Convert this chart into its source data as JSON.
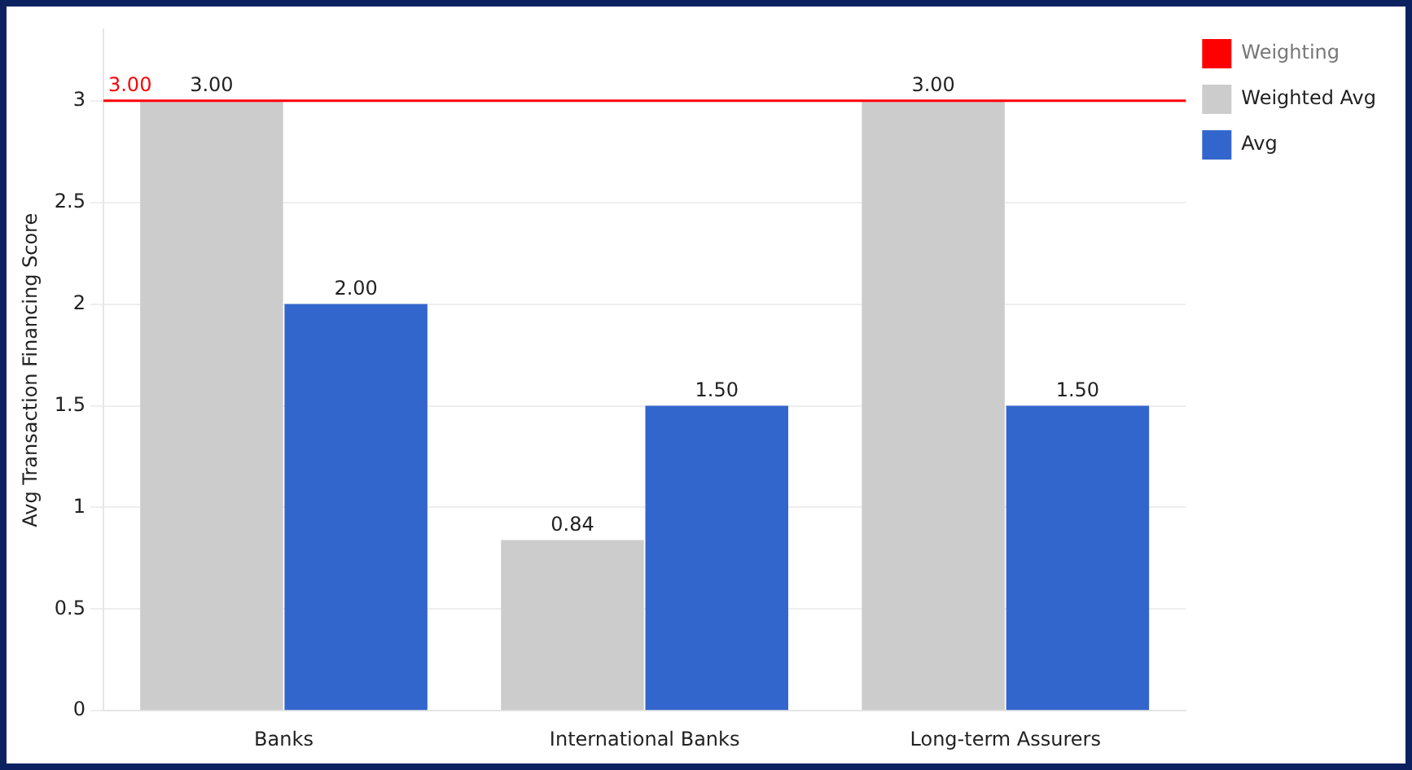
{
  "chart_data": {
    "type": "bar",
    "ylabel": "Avg Transaction Financing Score",
    "categories": [
      "Banks",
      "International Banks",
      "Long-term Assurers"
    ],
    "series": [
      {
        "name": "Weighted Avg",
        "color": "#cccccc",
        "values": [
          3,
          0.84,
          3
        ],
        "value_labels": [
          "3.00",
          "0.84",
          "3.00"
        ]
      },
      {
        "name": "Avg",
        "color": "#3366cc",
        "values": [
          2,
          1.5,
          1.5
        ],
        "value_labels": [
          "2.00",
          "1.50",
          "1.50"
        ]
      }
    ],
    "ref_lines": [
      {
        "axis": "y",
        "value": 3,
        "label": "Weighting",
        "color": "#ff0000"
      }
    ],
    "annotations": [
      {
        "text": "3.00",
        "y": 3
      }
    ],
    "ylim": [
      0,
      3.35
    ],
    "yticks": [
      0,
      0.5,
      1,
      1.5,
      2,
      2.5,
      3
    ],
    "grid": "y",
    "legend": "right"
  }
}
